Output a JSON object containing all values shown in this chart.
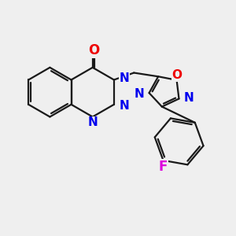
{
  "background_color": "#efefef",
  "bond_color": "#1a1a1a",
  "N_color": "#0000ee",
  "O_color": "#ee0000",
  "F_color": "#dd00dd",
  "lw": 1.6,
  "lw_thin": 1.2,
  "fs": 11,
  "xlim": [
    0,
    10
  ],
  "ylim": [
    0,
    10
  ]
}
